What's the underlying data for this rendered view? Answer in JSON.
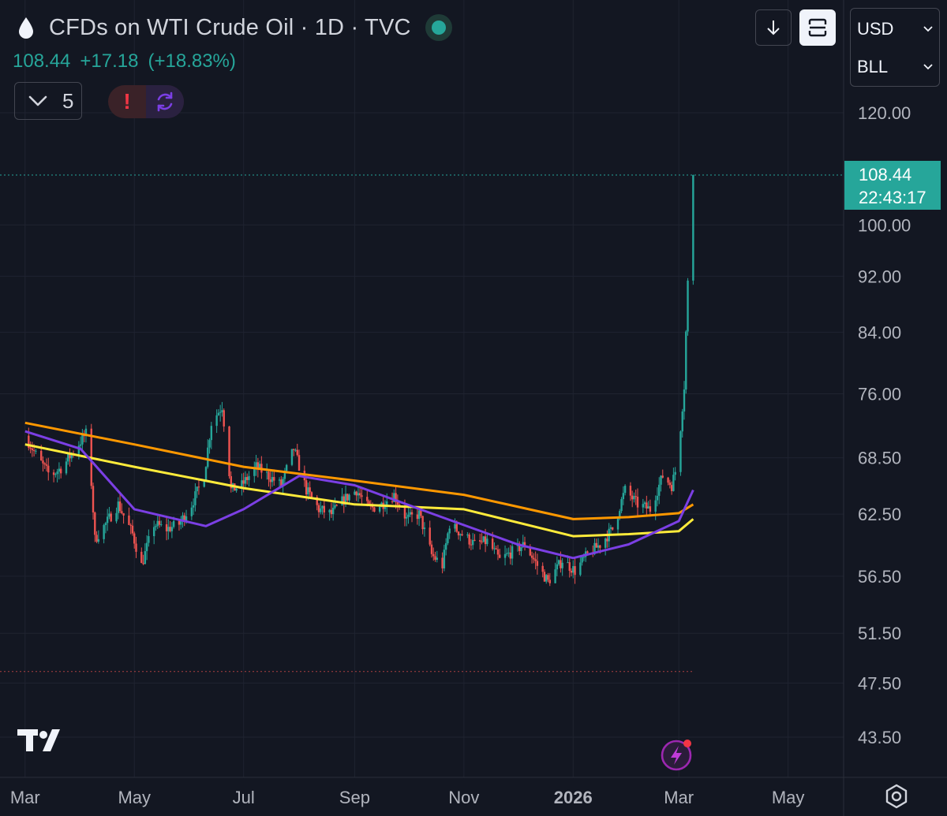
{
  "header": {
    "title": "CFDs on WTI Crude Oil · 1D · TVC",
    "price": "108.44",
    "change": "+17.18",
    "change_pct": "(+18.83%)",
    "indicator_count": "5",
    "alert_mark": "!",
    "icons": [
      "oil-drop-icon",
      "chevron-down-icon",
      "alert-icon",
      "sync-icon",
      "arrow-down-icon",
      "fullscreen-icon"
    ]
  },
  "currency": {
    "selected": "USD",
    "unit": "BLL"
  },
  "last_price_label": {
    "price": "108.44",
    "countdown": "22:43:17"
  },
  "colors": {
    "up": "#26a69a",
    "down": "#ef5350",
    "ma_orange": "#ff9800",
    "ma_yellow": "#ffeb3b",
    "ma_purple": "#7b3fe4",
    "background": "#131722"
  },
  "chart_data": {
    "type": "candlestick",
    "symbol": "CFDs on WTI Crude Oil",
    "interval": "1D",
    "y_ticks": [
      "120.00",
      "100.00",
      "92.00",
      "84.00",
      "76.00",
      "68.50",
      "62.50",
      "56.50",
      "51.50",
      "47.50",
      "43.50"
    ],
    "x_ticks": [
      "Mar",
      "May",
      "Jul",
      "Sep",
      "Nov",
      "2026",
      "Mar",
      "May"
    ],
    "ylim": [
      41.5,
      124
    ],
    "y_scale": "log",
    "grid": true,
    "last_price": 108.44,
    "dotted_low_line": 48.4,
    "price_path": [
      [
        "2025-03-01",
        71.0
      ],
      [
        "2025-03-08",
        68.5
      ],
      [
        "2025-03-15",
        66.5
      ],
      [
        "2025-03-22",
        67.5
      ],
      [
        "2025-03-29",
        69.5
      ],
      [
        "2025-04-05",
        71.5
      ],
      [
        "2025-04-09",
        60.0
      ],
      [
        "2025-04-15",
        61.5
      ],
      [
        "2025-04-22",
        63.5
      ],
      [
        "2025-04-30",
        60.5
      ],
      [
        "2025-05-05",
        57.5
      ],
      [
        "2025-05-12",
        61.5
      ],
      [
        "2025-05-19",
        61.0
      ],
      [
        "2025-05-26",
        61.5
      ],
      [
        "2025-06-02",
        63.5
      ],
      [
        "2025-06-09",
        66.5
      ],
      [
        "2025-06-13",
        72.5
      ],
      [
        "2025-06-19",
        74.5
      ],
      [
        "2025-06-24",
        65.0
      ],
      [
        "2025-06-30",
        65.5
      ],
      [
        "2025-07-08",
        67.5
      ],
      [
        "2025-07-15",
        66.5
      ],
      [
        "2025-07-22",
        65.5
      ],
      [
        "2025-07-29",
        69.5
      ],
      [
        "2025-08-05",
        65.0
      ],
      [
        "2025-08-12",
        63.0
      ],
      [
        "2025-08-19",
        62.5
      ],
      [
        "2025-08-26",
        64.0
      ],
      [
        "2025-09-02",
        65.0
      ],
      [
        "2025-09-09",
        63.0
      ],
      [
        "2025-09-16",
        63.5
      ],
      [
        "2025-09-23",
        64.5
      ],
      [
        "2025-09-30",
        62.0
      ],
      [
        "2025-10-07",
        62.5
      ],
      [
        "2025-10-14",
        58.5
      ],
      [
        "2025-10-20",
        57.5
      ],
      [
        "2025-10-24",
        61.5
      ],
      [
        "2025-10-31",
        60.5
      ],
      [
        "2025-11-07",
        59.5
      ],
      [
        "2025-11-14",
        59.8
      ],
      [
        "2025-11-21",
        58.0
      ],
      [
        "2025-11-28",
        58.8
      ],
      [
        "2025-12-05",
        59.5
      ],
      [
        "2025-12-12",
        57.5
      ],
      [
        "2025-12-18",
        56.0
      ],
      [
        "2025-12-26",
        58.0
      ],
      [
        "2026-01-02",
        57.0
      ],
      [
        "2026-01-09",
        58.5
      ],
      [
        "2026-01-16",
        59.5
      ],
      [
        "2026-01-23",
        61.0
      ],
      [
        "2026-01-30",
        65.0
      ],
      [
        "2026-02-06",
        63.5
      ],
      [
        "2026-02-13",
        63.0
      ],
      [
        "2026-02-20",
        66.5
      ],
      [
        "2026-02-25",
        65.5
      ],
      [
        "2026-02-27",
        67.0
      ],
      [
        "2026-03-02",
        72.0
      ],
      [
        "2026-03-04",
        77.0
      ],
      [
        "2026-03-06",
        91.0
      ],
      [
        "2026-03-09",
        108.44
      ]
    ],
    "series": [
      {
        "color": "#ff9800",
        "points": [
          [
            "2025-03-01",
            72.5
          ],
          [
            "2025-05-01",
            70.0
          ],
          [
            "2025-07-01",
            67.5
          ],
          [
            "2025-09-01",
            66.0
          ],
          [
            "2025-11-01",
            64.5
          ],
          [
            "2026-01-01",
            62.0
          ],
          [
            "2026-02-01",
            62.2
          ],
          [
            "2026-03-01",
            62.6
          ],
          [
            "2026-03-09",
            63.5
          ]
        ]
      },
      {
        "color": "#ffeb3b",
        "points": [
          [
            "2025-03-01",
            70.0
          ],
          [
            "2025-05-01",
            67.5
          ],
          [
            "2025-07-01",
            65.2
          ],
          [
            "2025-09-01",
            63.5
          ],
          [
            "2025-11-01",
            63.0
          ],
          [
            "2026-01-01",
            60.3
          ],
          [
            "2026-02-01",
            60.5
          ],
          [
            "2026-03-01",
            60.8
          ],
          [
            "2026-03-09",
            62.0
          ]
        ]
      },
      {
        "color": "#7b3fe4",
        "points": [
          [
            "2025-03-01",
            71.5
          ],
          [
            "2025-04-01",
            69.5
          ],
          [
            "2025-05-01",
            63.0
          ],
          [
            "2025-06-10",
            61.3
          ],
          [
            "2025-07-01",
            63.0
          ],
          [
            "2025-08-01",
            66.5
          ],
          [
            "2025-09-01",
            65.5
          ],
          [
            "2025-10-15",
            62.5
          ],
          [
            "2025-12-01",
            59.5
          ],
          [
            "2026-01-01",
            58.2
          ],
          [
            "2026-02-01",
            59.5
          ],
          [
            "2026-03-01",
            61.8
          ],
          [
            "2026-03-09",
            65.0
          ]
        ]
      }
    ]
  }
}
